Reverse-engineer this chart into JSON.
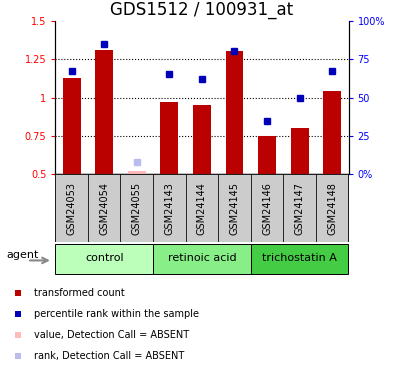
{
  "title": "GDS1512 / 100931_at",
  "samples": [
    "GSM24053",
    "GSM24054",
    "GSM24055",
    "GSM24143",
    "GSM24144",
    "GSM24145",
    "GSM24146",
    "GSM24147",
    "GSM24148"
  ],
  "red_values": [
    1.13,
    1.31,
    null,
    0.97,
    0.95,
    1.3,
    0.75,
    0.8,
    1.04
  ],
  "red_absent": [
    null,
    null,
    0.52,
    null,
    null,
    null,
    null,
    null,
    null
  ],
  "blue_values": [
    67,
    85,
    null,
    65,
    62,
    80,
    35,
    50,
    67
  ],
  "blue_absent": [
    null,
    null,
    8,
    null,
    null,
    null,
    null,
    null,
    null
  ],
  "groups": [
    {
      "label": "control",
      "start": 0,
      "end": 2,
      "color": "#BBFFBB"
    },
    {
      "label": "retinoic acid",
      "start": 3,
      "end": 5,
      "color": "#88EE88"
    },
    {
      "label": "trichostatin A",
      "start": 6,
      "end": 8,
      "color": "#44CC44"
    }
  ],
  "ylim_left": [
    0.5,
    1.5
  ],
  "ylim_right": [
    0,
    100
  ],
  "yticks_left": [
    0.5,
    0.75,
    1.0,
    1.25,
    1.5
  ],
  "ytick_labels_left": [
    "0.5",
    "0.75",
    "1",
    "1.25",
    "1.5"
  ],
  "yticks_right": [
    0,
    25,
    50,
    75,
    100
  ],
  "ytick_labels_right": [
    "0%",
    "25",
    "50",
    "75",
    "100%"
  ],
  "bar_color": "#BB0000",
  "bar_absent_color": "#FFBBBB",
  "dot_color": "#0000BB",
  "dot_absent_color": "#BBBBEE",
  "sample_bg_color": "#CCCCCC",
  "title_fontsize": 12,
  "tick_fontsize": 7,
  "sample_fontsize": 7,
  "legend_fontsize": 7,
  "group_fontsize": 8,
  "agent_fontsize": 8,
  "hgrid_values": [
    0.75,
    1.0,
    1.25
  ],
  "bar_width": 0.55,
  "legend_items": [
    {
      "color": "#BB0000",
      "label": "transformed count"
    },
    {
      "color": "#0000BB",
      "label": "percentile rank within the sample"
    },
    {
      "color": "#FFBBBB",
      "label": "value, Detection Call = ABSENT"
    },
    {
      "color": "#BBBBEE",
      "label": "rank, Detection Call = ABSENT"
    }
  ]
}
